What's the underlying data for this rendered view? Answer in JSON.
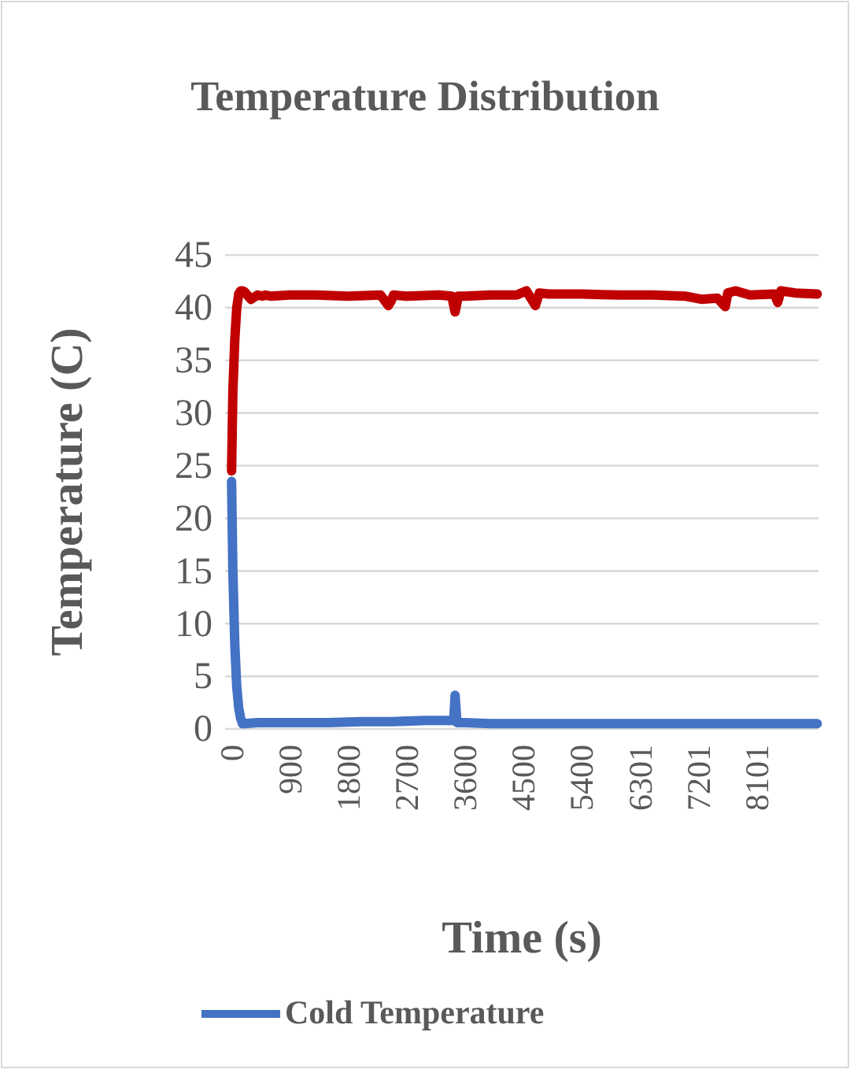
{
  "chart_data": {
    "type": "line",
    "title": "Temperature Distribution",
    "xlabel": "Time (s)",
    "ylabel": "Temperature (C)",
    "xlim": [
      -100,
      9060
    ],
    "xticks": [
      0,
      900,
      1800,
      2700,
      3600,
      4500,
      5400,
      6301,
      7201,
      8101
    ],
    "ylim": [
      0,
      45
    ],
    "yticks": [
      0,
      5,
      10,
      15,
      20,
      25,
      30,
      35,
      40,
      45
    ],
    "grid": "y",
    "legend": "bottom",
    "series": [
      {
        "color": "#c00000",
        "x": [
          0,
          20,
          50,
          80,
          110,
          140,
          170,
          200,
          300,
          400,
          480,
          520,
          600,
          900,
          1300,
          1800,
          2300,
          2420,
          2460,
          2500,
          2700,
          3200,
          3400,
          3450,
          3500,
          3600,
          4000,
          4400,
          4550,
          4690,
          4750,
          4900,
          5400,
          6000,
          6500,
          7000,
          7250,
          7500,
          7620,
          7660,
          7780,
          8000,
          8380,
          8430,
          8480,
          8700,
          9040
        ],
        "values": [
          24.5,
          32,
          37,
          40,
          41.3,
          41.6,
          41.6,
          41.5,
          40.8,
          41.2,
          41.1,
          41.2,
          41.1,
          41.2,
          41.2,
          41.1,
          41.2,
          40.2,
          40.6,
          41.2,
          41.1,
          41.2,
          41.1,
          39.6,
          41.1,
          41.1,
          41.2,
          41.2,
          41.6,
          40.2,
          41.4,
          41.3,
          41.3,
          41.2,
          41.2,
          41.1,
          40.8,
          40.9,
          40.1,
          41.4,
          41.6,
          41.2,
          41.3,
          40.5,
          41.6,
          41.4,
          41.3
        ]
      },
      {
        "name": "Cold Temperature",
        "color": "#4472c4",
        "x": [
          0,
          20,
          50,
          80,
          110,
          140,
          170,
          200,
          400,
          900,
          1500,
          2000,
          2500,
          3000,
          3300,
          3430,
          3450,
          3480,
          3600,
          4000,
          4500,
          5000,
          5500,
          6000,
          6500,
          7000,
          7500,
          8000,
          8500,
          9040
        ],
        "values": [
          23.5,
          15,
          8,
          4,
          2,
          1,
          0.5,
          0.5,
          0.6,
          0.6,
          0.6,
          0.7,
          0.7,
          0.8,
          0.8,
          0.8,
          3.2,
          0.6,
          0.6,
          0.5,
          0.5,
          0.5,
          0.5,
          0.5,
          0.5,
          0.5,
          0.5,
          0.5,
          0.5,
          0.5
        ]
      }
    ]
  }
}
